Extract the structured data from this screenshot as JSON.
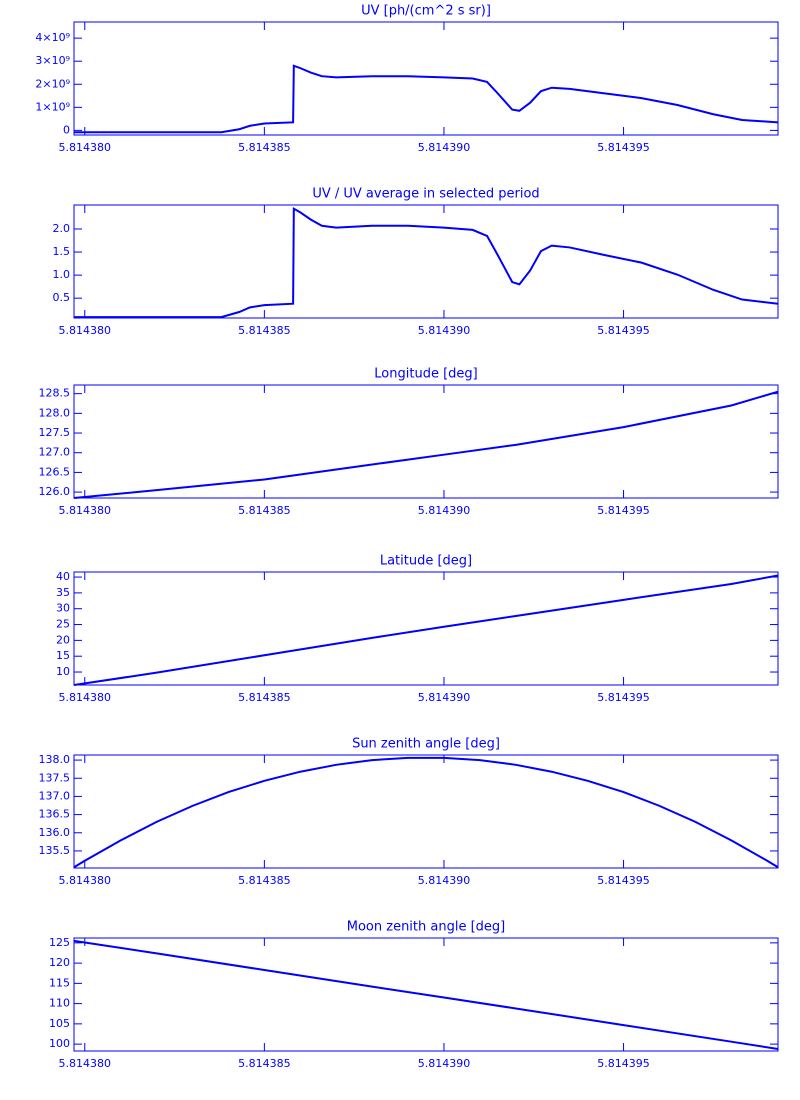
{
  "chart_data": [
    {
      "type": "line",
      "title": "UV [ph/(cm^2 s sr)]",
      "color": "#0000ff",
      "x": [
        5.8143797,
        5.8143838,
        5.8143843,
        5.8143846,
        5.814385,
        5.8143858,
        5.81438582,
        5.814386,
        5.8143863,
        5.8143866,
        5.814387,
        5.814388,
        5.814389,
        5.81439,
        5.8143908,
        5.8143912,
        5.8143915,
        5.8143919,
        5.8143921,
        5.8143924,
        5.8143927,
        5.814393,
        5.8143935,
        5.8143945,
        5.8143955,
        5.8143965,
        5.8143975,
        5.8143983,
        5.8143993
      ],
      "values": [
        -80000000,
        -80000000,
        50000000,
        200000000,
        300000000,
        350000000,
        2800000000,
        2700000000,
        2500000000,
        2350000000,
        2300000000,
        2350000000,
        2350000000,
        2300000000,
        2250000000,
        2100000000,
        1600000000,
        900000000,
        850000000,
        1200000000,
        1700000000,
        1850000000,
        1800000000,
        1600000000,
        1400000000,
        1100000000,
        700000000,
        450000000,
        350000000
      ],
      "xlim": [
        5.8143797,
        5.8143993
      ],
      "xticks": [
        {
          "value": 5.81438,
          "label": "5.814380"
        },
        {
          "value": 5.814385,
          "label": "5.814385"
        },
        {
          "value": 5.81439,
          "label": "5.814390"
        },
        {
          "value": 5.814395,
          "label": "5.814395"
        }
      ],
      "ylim": [
        -200000000,
        4700000000
      ],
      "yticks": [
        0,
        {
          "value": 1000000000,
          "label": "1×10⁹"
        },
        {
          "value": 2000000000,
          "label": "2×10⁹"
        },
        {
          "value": 3000000000,
          "label": "3×10⁹"
        },
        {
          "value": 4000000000,
          "label": "4×10⁹"
        }
      ]
    },
    {
      "type": "line",
      "title": "UV / UV average in selected period",
      "color": "#0000ff",
      "x": [
        5.8143797,
        5.8143838,
        5.8143843,
        5.8143846,
        5.814385,
        5.8143858,
        5.81438582,
        5.814386,
        5.8143863,
        5.8143866,
        5.814387,
        5.814388,
        5.814389,
        5.81439,
        5.8143908,
        5.8143912,
        5.8143915,
        5.8143919,
        5.8143921,
        5.8143924,
        5.8143927,
        5.814393,
        5.8143935,
        5.8143945,
        5.8143955,
        5.8143965,
        5.8143975,
        5.8143983,
        5.8143993
      ],
      "values": [
        0.09,
        0.09,
        0.2,
        0.3,
        0.35,
        0.38,
        2.44,
        2.36,
        2.2,
        2.07,
        2.03,
        2.07,
        2.07,
        2.03,
        1.98,
        1.85,
        1.43,
        0.85,
        0.8,
        1.1,
        1.52,
        1.64,
        1.6,
        1.43,
        1.27,
        1.01,
        0.68,
        0.47,
        0.38
      ],
      "xlim": [
        5.8143797,
        5.8143993
      ],
      "xticks": [
        {
          "value": 5.81438,
          "label": "5.814380"
        },
        {
          "value": 5.814385,
          "label": "5.814385"
        },
        {
          "value": 5.81439,
          "label": "5.814390"
        },
        {
          "value": 5.814395,
          "label": "5.814395"
        }
      ],
      "ylim": [
        0.07,
        2.52
      ],
      "yticks": [
        0.5,
        {
          "value": 1,
          "label": "1.0"
        },
        1.5,
        {
          "value": 2,
          "label": "2.0"
        }
      ]
    },
    {
      "type": "line",
      "title": "Longitude [deg]",
      "color": "#0000ff",
      "x": [
        5.8143797,
        5.814382,
        5.814385,
        5.814388,
        5.81439,
        5.814392,
        5.814395,
        5.814398,
        5.8143993
      ],
      "values": [
        125.85,
        126.05,
        126.32,
        126.7,
        126.95,
        127.2,
        127.65,
        128.2,
        128.55
      ],
      "xlim": [
        5.8143797,
        5.8143993
      ],
      "xticks": [
        {
          "value": 5.81438,
          "label": "5.814380"
        },
        {
          "value": 5.814385,
          "label": "5.814385"
        },
        {
          "value": 5.81439,
          "label": "5.814390"
        },
        {
          "value": 5.814395,
          "label": "5.814395"
        }
      ],
      "ylim": [
        125.85,
        128.72
      ],
      "yticks": [
        {
          "value": 126,
          "label": "126.0"
        },
        126.5,
        {
          "value": 127,
          "label": "127.0"
        },
        127.5,
        {
          "value": 128,
          "label": "128.0"
        },
        128.5
      ]
    },
    {
      "type": "line",
      "title": "Latitude [deg]",
      "color": "#0000ff",
      "x": [
        5.8143797,
        5.814382,
        5.814385,
        5.814388,
        5.81439,
        5.814392,
        5.814395,
        5.814398,
        5.8143993
      ],
      "values": [
        5.9,
        9.8,
        15.3,
        20.8,
        24.3,
        27.7,
        32.8,
        37.8,
        40.5
      ],
      "xlim": [
        5.8143797,
        5.8143993
      ],
      "xticks": [
        {
          "value": 5.81438,
          "label": "5.814380"
        },
        {
          "value": 5.814385,
          "label": "5.814385"
        },
        {
          "value": 5.81439,
          "label": "5.814390"
        },
        {
          "value": 5.814395,
          "label": "5.814395"
        }
      ],
      "ylim": [
        5.9,
        41.6
      ],
      "yticks": [
        10,
        15,
        20,
        25,
        30,
        35,
        40
      ]
    },
    {
      "type": "line",
      "title": "Sun zenith angle [deg]",
      "color": "#0000ff",
      "x": [
        5.8143797,
        5.81438,
        5.814381,
        5.814382,
        5.814383,
        5.814384,
        5.814385,
        5.814386,
        5.814387,
        5.814388,
        5.814389,
        5.81439,
        5.814391,
        5.814392,
        5.814393,
        5.814394,
        5.814395,
        5.814396,
        5.814397,
        5.814398,
        5.814399,
        5.8143993
      ],
      "values": [
        135.05,
        135.23,
        135.79,
        136.3,
        136.74,
        137.12,
        137.43,
        137.68,
        137.87,
        138.0,
        138.06,
        138.06,
        138.0,
        137.87,
        137.68,
        137.43,
        137.12,
        136.74,
        136.3,
        135.79,
        135.23,
        135.05
      ],
      "xlim": [
        5.8143797,
        5.8143993
      ],
      "xticks": [
        {
          "value": 5.81438,
          "label": "5.814380"
        },
        {
          "value": 5.814385,
          "label": "5.814385"
        },
        {
          "value": 5.81439,
          "label": "5.814390"
        },
        {
          "value": 5.814395,
          "label": "5.814395"
        }
      ],
      "ylim": [
        135.03,
        138.14
      ],
      "yticks": [
        135.5,
        {
          "value": 136,
          "label": "136.0"
        },
        136.5,
        {
          "value": 137,
          "label": "137.0"
        },
        137.5,
        {
          "value": 138,
          "label": "138.0"
        }
      ]
    },
    {
      "type": "line",
      "title": "Moon zenith angle [deg]",
      "color": "#0000ff",
      "x": [
        5.8143797,
        5.814382,
        5.814385,
        5.814388,
        5.81439,
        5.814392,
        5.814395,
        5.814398,
        5.8143993
      ],
      "values": [
        125.5,
        122.4,
        118.3,
        114.2,
        111.5,
        108.8,
        104.7,
        100.6,
        98.8
      ],
      "xlim": [
        5.8143797,
        5.8143993
      ],
      "xticks": [
        {
          "value": 5.81438,
          "label": "5.814380"
        },
        {
          "value": 5.814385,
          "label": "5.814385"
        },
        {
          "value": 5.81439,
          "label": "5.814390"
        },
        {
          "value": 5.814395,
          "label": "5.814395"
        }
      ],
      "ylim": [
        98.3,
        126.2
      ],
      "yticks": [
        100,
        105,
        110,
        115,
        120,
        125
      ]
    }
  ]
}
